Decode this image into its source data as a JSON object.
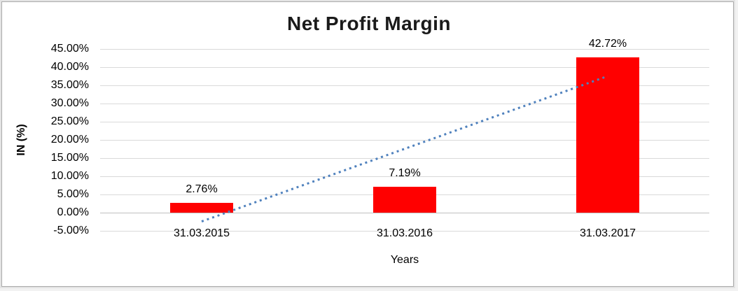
{
  "chart_data": {
    "type": "bar",
    "title": "Net Profit Margin",
    "xlabel": "Years",
    "ylabel": "IN (%)",
    "categories": [
      "31.03.2015",
      "31.03.2016",
      "31.03.2017"
    ],
    "values": [
      2.76,
      7.19,
      42.72
    ],
    "value_labels": [
      "2.76%",
      "7.19%",
      "42.72%"
    ],
    "ylim": [
      -5,
      45
    ],
    "ytick_step": 5,
    "yticks": [
      {
        "value": 45,
        "label": "45.00%"
      },
      {
        "value": 40,
        "label": "40.00%"
      },
      {
        "value": 35,
        "label": "35.00%"
      },
      {
        "value": 30,
        "label": "30.00%"
      },
      {
        "value": 25,
        "label": "25.00%"
      },
      {
        "value": 20,
        "label": "20.00%"
      },
      {
        "value": 15,
        "label": "15.00%"
      },
      {
        "value": 10,
        "label": "10.00%"
      },
      {
        "value": 5,
        "label": "5.00%"
      },
      {
        "value": 0,
        "label": "0.00%"
      },
      {
        "value": -5,
        "label": "-5.00%"
      }
    ],
    "grid": true,
    "legend": "none",
    "colors": {
      "bar": "#ff0000",
      "trendline": "#4f81bd",
      "gridline": "#d9d9d9",
      "text": "#000000",
      "title_text": "#1a1a1a"
    },
    "trendline": {
      "style": "dotted",
      "color": "#4f81bd",
      "start_value": -2.42,
      "end_value": 37.54,
      "start_category_index": 0,
      "end_category_index": 2
    }
  }
}
